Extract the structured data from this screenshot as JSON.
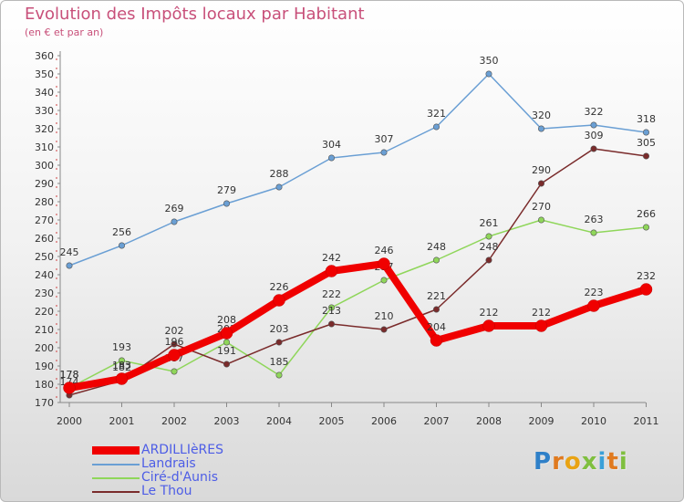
{
  "chart_data": {
    "type": "line",
    "title": "Evolution des Impôts locaux par Habitant",
    "subtitle": "(en € et par an)",
    "categories": [
      "2000",
      "2001",
      "2002",
      "2003",
      "2004",
      "2005",
      "2006",
      "2007",
      "2008",
      "2009",
      "2010",
      "2011"
    ],
    "ylim": [
      170,
      360
    ],
    "yticks": [
      170,
      180,
      190,
      200,
      210,
      220,
      230,
      240,
      250,
      260,
      270,
      280,
      290,
      300,
      310,
      320,
      330,
      340,
      350,
      360
    ],
    "grid": false,
    "legend_position": "bottom-left",
    "series": [
      {
        "name": "Landrais",
        "color": "#6a9fd4",
        "values": [
          245,
          256,
          269,
          279,
          288,
          304,
          307,
          321,
          350,
          320,
          322,
          318
        ]
      },
      {
        "name": "Ciré-d'Aunis",
        "color": "#8fd65a",
        "values": [
          178,
          193,
          187,
          203,
          185,
          222,
          237,
          248,
          261,
          270,
          263,
          266
        ]
      },
      {
        "name": "Le Thou",
        "color": "#7a2b2b",
        "values": [
          174,
          182,
          202,
          191,
          203,
          213,
          210,
          221,
          248,
          290,
          309,
          305
        ]
      },
      {
        "name": "ARDILLIèRES",
        "color": "#f00000",
        "values": [
          178,
          183,
          196,
          208,
          226,
          242,
          246,
          204,
          212,
          212,
          223,
          232
        ]
      }
    ],
    "legend": [
      {
        "label": "ARDILLIèRES",
        "color": "#f00000"
      },
      {
        "label": "Landrais",
        "color": "#6a9fd4"
      },
      {
        "label": "Ciré-d'Aunis",
        "color": "#8fd65a"
      },
      {
        "label": "Le Thou",
        "color": "#7a2b2b"
      }
    ]
  },
  "brand": {
    "letters": [
      {
        "ch": "P",
        "color": "#2f80c8"
      },
      {
        "ch": "r",
        "color": "#e07a1f"
      },
      {
        "ch": "o",
        "color": "#e9a313"
      },
      {
        "ch": "x",
        "color": "#7fbf3f"
      },
      {
        "ch": "i",
        "color": "#3aa0d8"
      },
      {
        "ch": "t",
        "color": "#e07a1f"
      },
      {
        "ch": "i",
        "color": "#7fbf3f"
      }
    ]
  }
}
